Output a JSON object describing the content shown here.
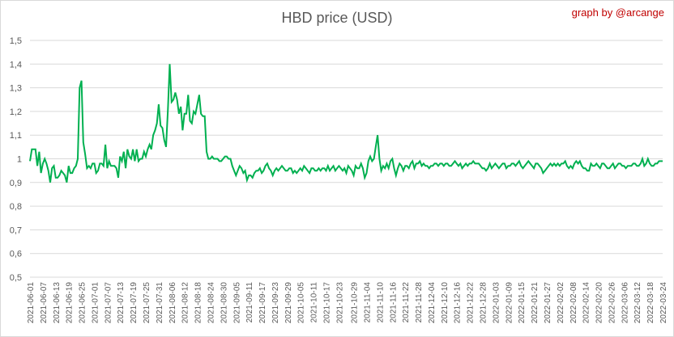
{
  "chart_data": {
    "type": "line",
    "title": "HBD price (USD)",
    "credit": "graph by @arcange",
    "xlabel": "",
    "ylabel": "",
    "ylim": [
      0.5,
      1.5
    ],
    "y_ticks": [
      "0,5",
      "0,6",
      "0,7",
      "0,8",
      "0,9",
      "1",
      "1,1",
      "1,2",
      "1,3",
      "1,4",
      "1,5"
    ],
    "x_tick_labels": [
      "2021-06-01",
      "2021-06-07",
      "2021-06-13",
      "2021-06-19",
      "2021-06-25",
      "2021-07-01",
      "2021-07-07",
      "2021-07-13",
      "2021-07-19",
      "2021-07-25",
      "2021-07-31",
      "2021-08-06",
      "2021-08-12",
      "2021-08-18",
      "2021-08-24",
      "2021-08-30",
      "2021-09-05",
      "2021-09-11",
      "2021-09-17",
      "2021-09-23",
      "2021-09-29",
      "2021-10-05",
      "2021-10-11",
      "2021-10-17",
      "2021-10-23",
      "2021-10-29",
      "2021-11-04",
      "2021-11-10",
      "2021-11-16",
      "2021-11-22",
      "2021-11-28",
      "2021-12-04",
      "2021-12-10",
      "2021-12-16",
      "2021-12-22",
      "2021-12-28",
      "2022-01-03",
      "2022-01-09",
      "2022-01-15",
      "2022-01-21",
      "2022-01-27",
      "2022-02-02",
      "2022-02-08",
      "2022-02-14",
      "2022-02-20",
      "2022-02-26",
      "2022-03-06",
      "2022-03-12",
      "2022-03-18",
      "2022-03-24"
    ],
    "grid": true,
    "line_color": "#00b050",
    "series": [
      {
        "start": "2021-06-01",
        "step_days": 1,
        "values": [
          0.99,
          1.04,
          1.04,
          1.04,
          0.97,
          1.03,
          0.94,
          0.98,
          1.0,
          0.98,
          0.95,
          0.9,
          0.96,
          0.97,
          0.92,
          0.92,
          0.93,
          0.95,
          0.94,
          0.93,
          0.9,
          0.97,
          0.94,
          0.94,
          0.96,
          0.97,
          1.0,
          1.3,
          1.33,
          1.07,
          1.02,
          0.96,
          0.97,
          0.96,
          0.98,
          0.98,
          0.94,
          0.95,
          0.98,
          0.98,
          0.97,
          1.06,
          0.96,
          0.99,
          0.97,
          0.97,
          0.97,
          0.96,
          0.92,
          1.01,
          0.99,
          1.03,
          0.96,
          1.04,
          1.01,
          1.0,
          1.04,
          0.99,
          1.04,
          0.99,
          1.0,
          1.0,
          1.03,
          1.01,
          1.04,
          1.06,
          1.04,
          1.1,
          1.12,
          1.15,
          1.23,
          1.14,
          1.13,
          1.08,
          1.05,
          1.21,
          1.4,
          1.24,
          1.25,
          1.28,
          1.25,
          1.19,
          1.22,
          1.12,
          1.19,
          1.19,
          1.27,
          1.16,
          1.15,
          1.2,
          1.19,
          1.23,
          1.27,
          1.19,
          1.18,
          1.18,
          1.03,
          1.0,
          1.0,
          1.01,
          1.0,
          1.0,
          1.0,
          0.99,
          0.99,
          1.0,
          1.01,
          1.01,
          1.0,
          1.0,
          0.97,
          0.95,
          0.93,
          0.95,
          0.97,
          0.96,
          0.94,
          0.95,
          0.91,
          0.93,
          0.93,
          0.92,
          0.94,
          0.95,
          0.95,
          0.96,
          0.94,
          0.95,
          0.97,
          0.98,
          0.96,
          0.95,
          0.93,
          0.95,
          0.96,
          0.95,
          0.96,
          0.97,
          0.96,
          0.95,
          0.95,
          0.96,
          0.96,
          0.94,
          0.95,
          0.94,
          0.95,
          0.96,
          0.95,
          0.97,
          0.96,
          0.95,
          0.94,
          0.96,
          0.96,
          0.95,
          0.95,
          0.96,
          0.95,
          0.96,
          0.96,
          0.95,
          0.97,
          0.95,
          0.96,
          0.97,
          0.95,
          0.96,
          0.97,
          0.96,
          0.95,
          0.96,
          0.94,
          0.97,
          0.96,
          0.95,
          0.93,
          0.97,
          0.96,
          0.96,
          0.98,
          0.96,
          0.92,
          0.94,
          0.99,
          1.01,
          0.99,
          1.0,
          1.05,
          1.1,
          1.0,
          0.95,
          0.97,
          0.96,
          0.98,
          0.96,
          0.99,
          1.0,
          0.96,
          0.93,
          0.96,
          0.98,
          0.97,
          0.95,
          0.97,
          0.97,
          0.96,
          0.98,
          0.99,
          0.96,
          0.98,
          0.98,
          0.99,
          0.97,
          0.98,
          0.97,
          0.97,
          0.96,
          0.97,
          0.97,
          0.98,
          0.98,
          0.97,
          0.98,
          0.98,
          0.97,
          0.98,
          0.98,
          0.97,
          0.97,
          0.98,
          0.99,
          0.98,
          0.97,
          0.98,
          0.96,
          0.97,
          0.98,
          0.97,
          0.98,
          0.98,
          0.99,
          0.98,
          0.98,
          0.98,
          0.97,
          0.96,
          0.96,
          0.95,
          0.96,
          0.98,
          0.96,
          0.97,
          0.98,
          0.97,
          0.96,
          0.97,
          0.98,
          0.98,
          0.96,
          0.97,
          0.97,
          0.98,
          0.98,
          0.97,
          0.98,
          0.99,
          0.97,
          0.96,
          0.97,
          0.98,
          0.99,
          0.98,
          0.97,
          0.96,
          0.98,
          0.98,
          0.97,
          0.96,
          0.94,
          0.95,
          0.96,
          0.97,
          0.98,
          0.97,
          0.98,
          0.97,
          0.98,
          0.97,
          0.98,
          0.98,
          0.99,
          0.97,
          0.96,
          0.97,
          0.96,
          0.98,
          0.99,
          0.98,
          0.99,
          0.97,
          0.96,
          0.96,
          0.95,
          0.95,
          0.98,
          0.97,
          0.97,
          0.98,
          0.97,
          0.96,
          0.98,
          0.98,
          0.97,
          0.96,
          0.96,
          0.97,
          0.98,
          0.96,
          0.97,
          0.98,
          0.98,
          0.97,
          0.97,
          0.96,
          0.97,
          0.97,
          0.97,
          0.98,
          0.98,
          0.97,
          0.97,
          0.98,
          1.0,
          0.97,
          0.98,
          1.0,
          0.98,
          0.97,
          0.97,
          0.98,
          0.98,
          0.99,
          0.99,
          0.99
        ]
      }
    ]
  }
}
